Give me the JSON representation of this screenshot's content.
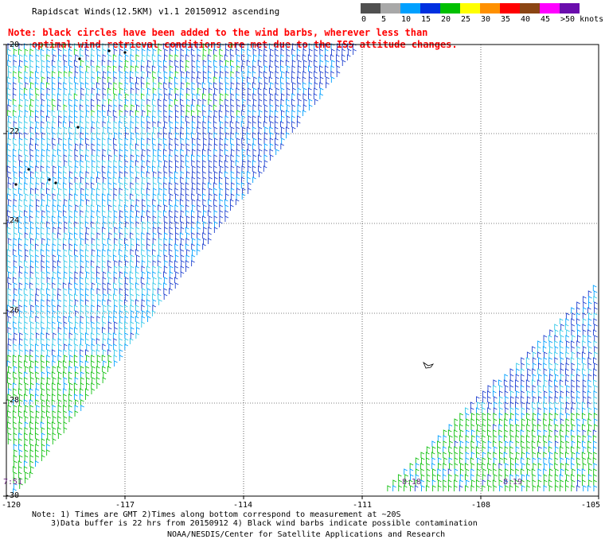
{
  "title": "Rapidscat Winds(12.5KM) v1.1 20150912 ascending",
  "note": {
    "line1": "Note: black circles have been added to the wind barbs, wherever less than",
    "line2": "optimal wind retrieval conditions are met due to the ISS attitude changes."
  },
  "legend": {
    "colors": [
      "#505050",
      "#a8a8a8",
      "#00a0ff",
      "#0030e0",
      "#00c000",
      "#ffff00",
      "#ff9000",
      "#ff0000",
      "#8b4513",
      "#ff00ff",
      "#6a0dad"
    ],
    "labels": [
      "0",
      "5",
      "10",
      "15",
      "20",
      "25",
      "30",
      "35",
      "40",
      "45",
      ">50 knots"
    ]
  },
  "y_axis": {
    "labels": [
      "-20",
      "-22",
      "-24",
      "-26",
      "-28",
      "-30"
    ]
  },
  "x_axis": {
    "labels": [
      "-120",
      "-117",
      "-114",
      "-111",
      "-108",
      "-105"
    ]
  },
  "swath_times": [
    "7:51",
    "8:18",
    "8:19"
  ],
  "footer": {
    "line1": "Note: 1) Times are GMT 2)Times along bottom correspond to measurement at ~20S",
    "line2": "3)Data buffer is 22 hrs from 20150912 4) Black wind barbs indicate possible contamination",
    "credit": "NOAA/NESDIS/Center for Satellite Applications and Research"
  }
}
